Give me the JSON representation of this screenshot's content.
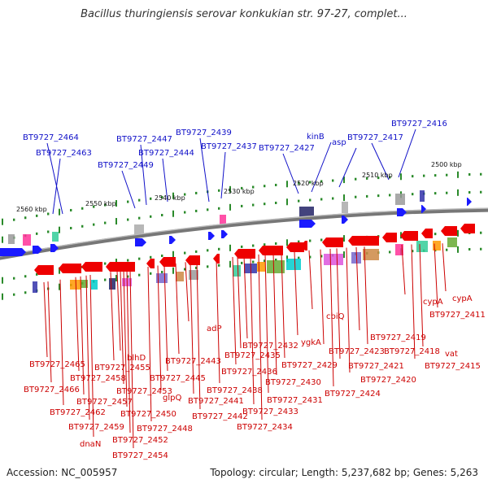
{
  "title": "Bacillus thuringiensis serovar konkukian str. 97-27, complet...",
  "accession": "Accession: NC_005957",
  "info": "Topology: circular; Length: 5,237,682 bp; Genes: 5,263",
  "colors": {
    "forward": "#1a1aff",
    "reverse": "#ee0000",
    "line_blue": "#1010c8",
    "line_red": "#cc0000",
    "backbone": "#777777",
    "tick": "#2a8a2a"
  },
  "kbp_labels": [
    "2560 kbp",
    "2550 kbp",
    "2540 kbp",
    "2530 kbp",
    "2520 kbp",
    "2510 kbp",
    "2500 kbp"
  ],
  "top_labels": [
    "BT9727_2464",
    "BT9727_2463",
    "BT9727_2449",
    "BT9727_2447",
    "BT9727_2444",
    "BT9727_2439",
    "BT9727_2437",
    "BT9727_2427",
    "kinB",
    "asp",
    "BT9727_2417",
    "BT9727_2416"
  ],
  "bottom_labels": [
    "BT9727_2465",
    "BT9727_2466",
    "BT9727_2458",
    "BT9727_2457",
    "BT9727_2462",
    "BT9727_2459",
    "dnaN",
    "BT9727_2455",
    "blhD",
    "BT9727_2453",
    "BT9727_2450",
    "BT9727_2452",
    "BT9727_2454",
    "BT9727_2448",
    "glpQ",
    "BT9727_2445",
    "BT9727_2443",
    "adP",
    "BT9727_2441",
    "BT9727_2442",
    "BT9727_2438",
    "BT9727_2436",
    "BT9727_2435",
    "BT9727_2432",
    "BT9727_2433",
    "BT9727_2434",
    "BT9727_2431",
    "BT9727_2430",
    "BT9727_2429",
    "ygkA",
    "cbiQ",
    "BT9727_2423",
    "BT9727_2424",
    "BT9727_2421",
    "BT9727_2420",
    "BT9727_2419",
    "BT9727_2418",
    "cypA",
    "BT9727_2415",
    "vat",
    "BT9727_2411",
    "cypA"
  ]
}
